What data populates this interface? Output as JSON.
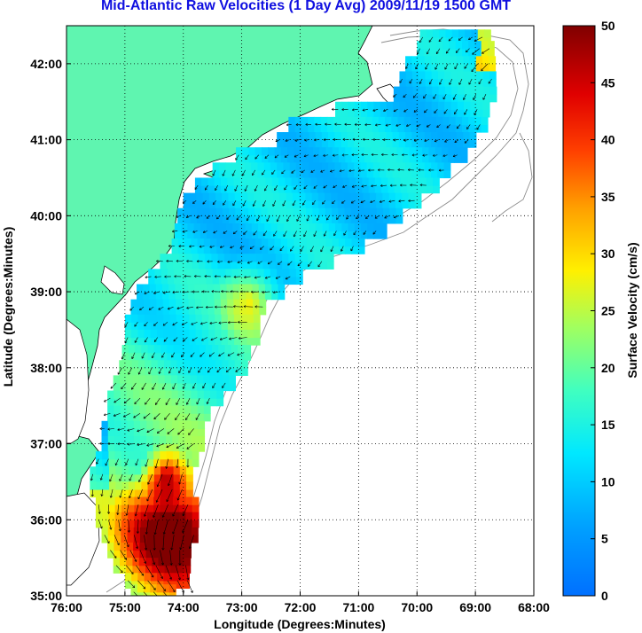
{
  "title": "Mid-Atlantic Raw Velocities (1 Day Avg) 2009/11/19 1500 GMT",
  "map": {
    "xlabel": "Longitude (Degrees:Minutes)",
    "ylabel": "Latitude (Degrees:Minutes)",
    "lon_range": [
      -76,
      -68
    ],
    "lat_range": [
      35,
      42.5
    ],
    "lon_ticks": [
      "76:00",
      "75:00",
      "74:00",
      "73:00",
      "72:00",
      "71:00",
      "70:00",
      "69:00",
      "68:00"
    ],
    "lat_ticks": [
      "35:00",
      "36:00",
      "37:00",
      "38:00",
      "39:00",
      "40:00",
      "41:00",
      "42:00"
    ],
    "land_color": "#5ff5b0",
    "grid": "dotted"
  },
  "colorbar": {
    "label": "Surface Velocity (cm/s)",
    "min": 0,
    "max": 50,
    "ticks": [
      "0",
      "5",
      "10",
      "15",
      "20",
      "25",
      "30",
      "35",
      "40",
      "45",
      "50"
    ],
    "colormap": "jet"
  }
}
